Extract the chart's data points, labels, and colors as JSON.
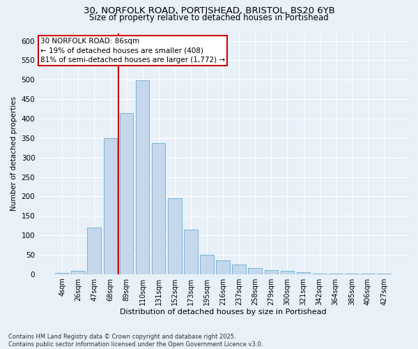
{
  "title_line1": "30, NORFOLK ROAD, PORTISHEAD, BRISTOL, BS20 6YB",
  "title_line2": "Size of property relative to detached houses in Portishead",
  "xlabel": "Distribution of detached houses by size in Portishead",
  "ylabel": "Number of detached properties",
  "categories": [
    "4sqm",
    "26sqm",
    "47sqm",
    "68sqm",
    "89sqm",
    "110sqm",
    "131sqm",
    "152sqm",
    "173sqm",
    "195sqm",
    "216sqm",
    "237sqm",
    "258sqm",
    "279sqm",
    "300sqm",
    "321sqm",
    "342sqm",
    "364sqm",
    "385sqm",
    "406sqm",
    "427sqm"
  ],
  "values": [
    3,
    8,
    120,
    350,
    415,
    498,
    338,
    195,
    115,
    50,
    35,
    24,
    16,
    10,
    8,
    4,
    1,
    2,
    1,
    1,
    1
  ],
  "bar_color": "#c5d8eb",
  "bar_edge_color": "#7ab3d4",
  "vline_index": 4,
  "vline_color": "#cc0000",
  "annotation_text": "30 NORFOLK ROAD: 86sqm\n← 19% of detached houses are smaller (408)\n81% of semi-detached houses are larger (1,772) →",
  "annotation_box_color": "white",
  "annotation_box_edge": "#cc0000",
  "ylim": [
    0,
    620
  ],
  "yticks": [
    0,
    50,
    100,
    150,
    200,
    250,
    300,
    350,
    400,
    450,
    500,
    550,
    600
  ],
  "background_color": "#e8f0f8",
  "footer_line1": "Contains HM Land Registry data © Crown copyright and database right 2025.",
  "footer_line2": "Contains public sector information licensed under the Open Government Licence v3.0."
}
